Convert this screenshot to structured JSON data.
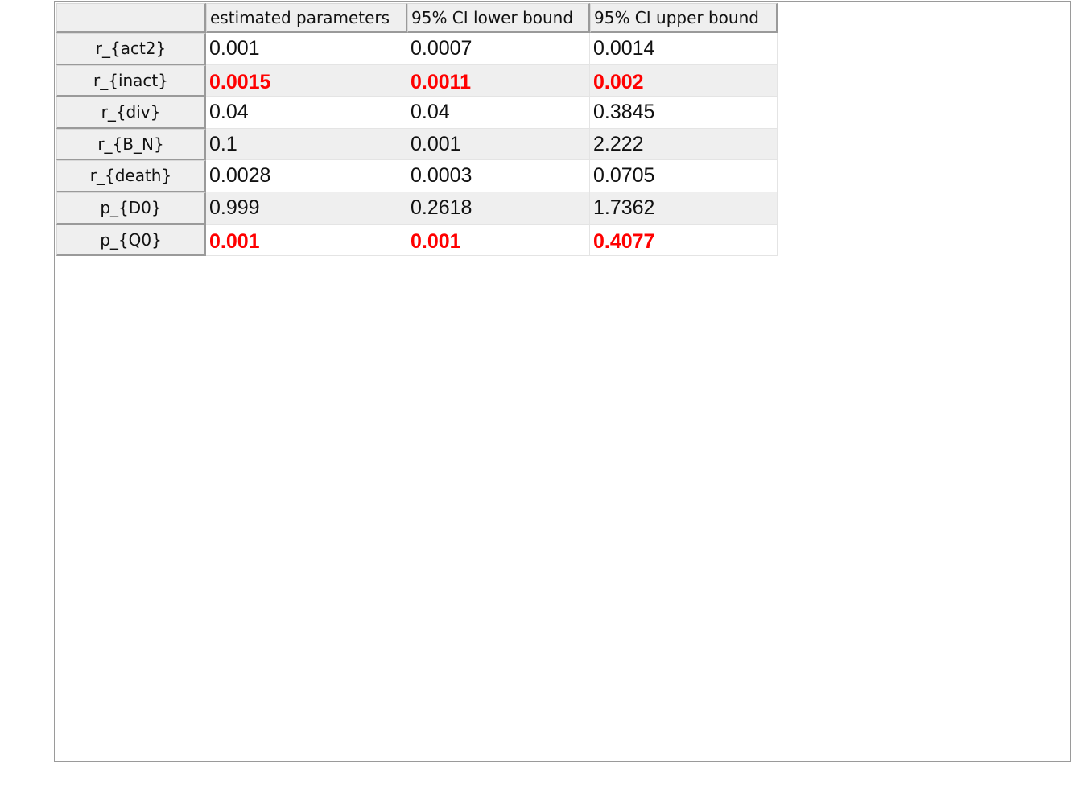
{
  "table": {
    "columns": [
      "",
      "estimated parameters",
      "95% CI lower bound",
      "95% CI upper bound"
    ],
    "highlight_color": "#ff0000",
    "rows": [
      {
        "name": "r_{act2}",
        "values": [
          "0.001",
          "0.0007",
          "0.0014"
        ],
        "highlighted": false
      },
      {
        "name": "r_{inact}",
        "values": [
          "0.0015",
          "0.0011",
          "0.002"
        ],
        "highlighted": true
      },
      {
        "name": "r_{div}",
        "values": [
          "0.04",
          "0.04",
          "0.3845"
        ],
        "highlighted": false
      },
      {
        "name": "r_{B_N}",
        "values": [
          "0.1",
          "0.001",
          "2.222"
        ],
        "highlighted": false
      },
      {
        "name": "r_{death}",
        "values": [
          "0.0028",
          "0.0003",
          "0.0705"
        ],
        "highlighted": false
      },
      {
        "name": "p_{D0}",
        "values": [
          "0.999",
          "0.2618",
          "1.7362"
        ],
        "highlighted": false
      },
      {
        "name": "p_{Q0}",
        "values": [
          "0.001",
          "0.001",
          "0.4077"
        ],
        "highlighted": true
      }
    ]
  }
}
